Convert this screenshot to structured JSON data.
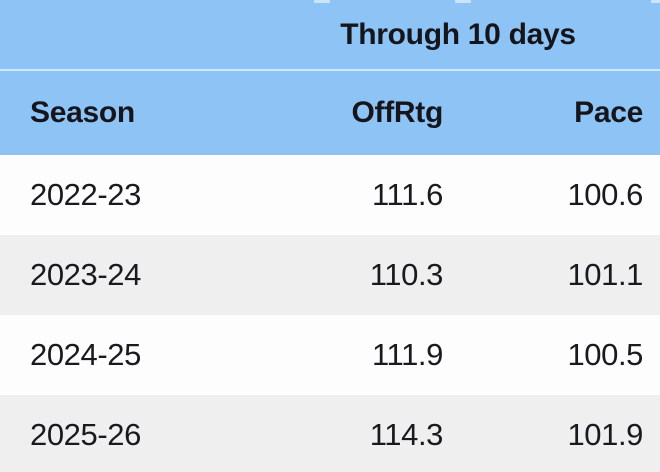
{
  "table": {
    "group_header": "Through 10 days",
    "columns": [
      "Season",
      "OffRtg",
      "Pace"
    ],
    "rows": [
      {
        "season": "2022-23",
        "offrtg": "111.6",
        "pace": "100.6"
      },
      {
        "season": "2023-24",
        "offrtg": "110.3",
        "pace": "101.1"
      },
      {
        "season": "2024-25",
        "offrtg": "111.9",
        "pace": "100.5"
      },
      {
        "season": "2025-26",
        "offrtg": "114.3",
        "pace": "101.9"
      }
    ]
  },
  "chart_data": {
    "type": "table",
    "title": "Through 10 days",
    "categories": [
      "2022-23",
      "2023-24",
      "2024-25",
      "2025-26"
    ],
    "series": [
      {
        "name": "OffRtg",
        "values": [
          111.6,
          110.3,
          111.9,
          114.3
        ]
      },
      {
        "name": "Pace",
        "values": [
          100.6,
          101.1,
          100.5,
          101.9
        ]
      }
    ],
    "layout": {
      "zebra_striping": true,
      "header_position": "top"
    }
  },
  "colors": {
    "header_bg": "#8dc4f5",
    "header_divider": "#cfe6fb",
    "row_bg": "#fdfdfe",
    "row_alt_bg": "#efefef",
    "text": "#15151b"
  }
}
